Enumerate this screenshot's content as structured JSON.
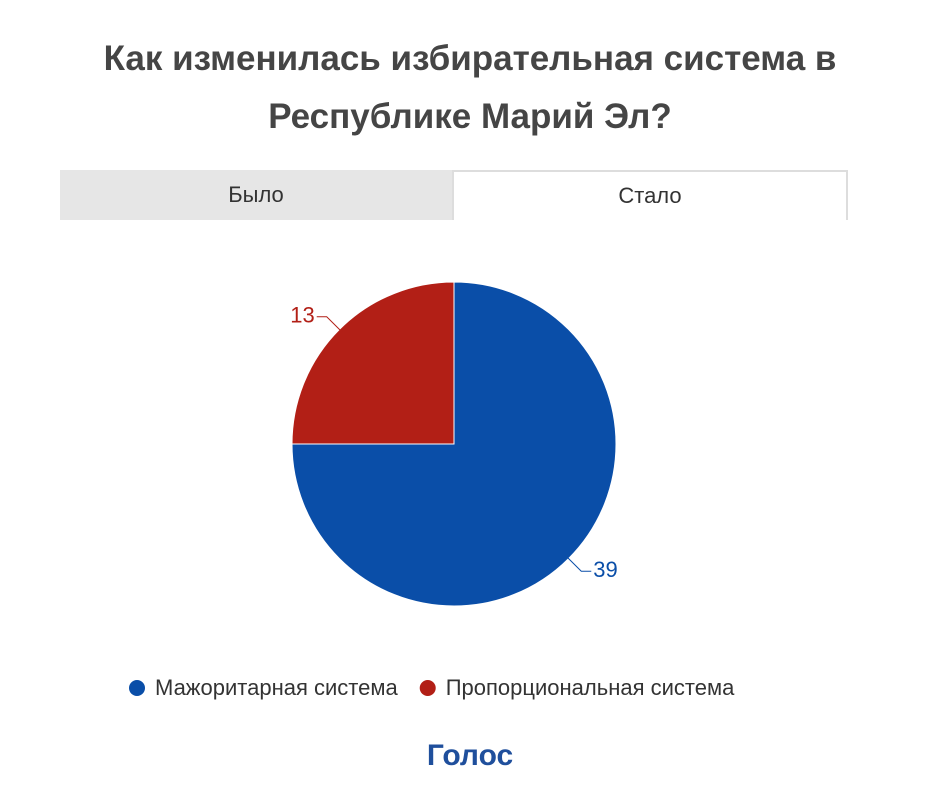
{
  "tabs": [
    "Было",
    "Стало"
  ],
  "active_tab": 1,
  "chart_data": {
    "type": "pie",
    "title": "Как изменилась избирательная система в Республике Марий Эл?",
    "categories": [
      "Мажоритарная система",
      "Пропорциональная система"
    ],
    "values": [
      39,
      13
    ],
    "colors": [
      "#0a4ea8",
      "#b21f16"
    ]
  },
  "logo": "Голос"
}
